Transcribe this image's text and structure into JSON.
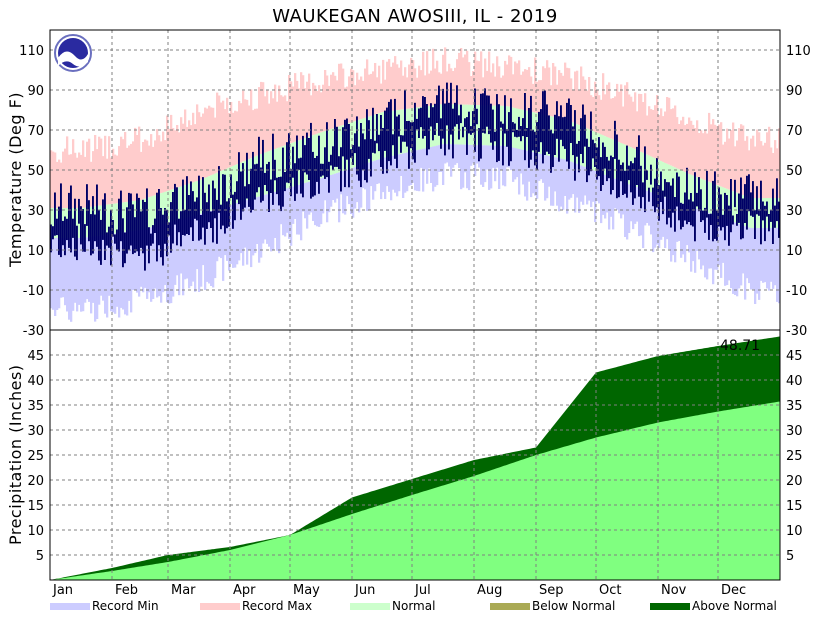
{
  "colors": {
    "record_min": "#ccccff",
    "record_max": "#ffcccc",
    "normal": "#ccffcc",
    "observed": "#000066",
    "below_normal": "#aaaa55",
    "above_normal": "#006600",
    "normal_precip": "#80ff80",
    "grid": "#808080"
  },
  "chart_data": {
    "type": "area",
    "title": "WAUKEGAN  AWOSIII, IL - 2019",
    "x_ticks": [
      "Jan",
      "Feb",
      "Mar",
      "Apr",
      "May",
      "Jun",
      "Jul",
      "Aug",
      "Sep",
      "Oct",
      "Nov",
      "Dec"
    ],
    "grid": true,
    "temperature": {
      "ylabel": "Temperature (Deg F)",
      "ylim": [
        -30,
        120
      ],
      "y_ticks": [
        110,
        90,
        70,
        50,
        30,
        10,
        -10,
        -30
      ],
      "monthly_normal_high": [
        31,
        35,
        45,
        58,
        69,
        79,
        83,
        82,
        75,
        62,
        48,
        36
      ],
      "monthly_normal_low": [
        16,
        20,
        28,
        37,
        46,
        56,
        63,
        62,
        55,
        43,
        32,
        21
      ],
      "monthly_record_max": [
        60,
        65,
        80,
        88,
        95,
        100,
        105,
        102,
        97,
        88,
        75,
        65
      ],
      "monthly_record_min": [
        -20,
        -15,
        -5,
        10,
        28,
        38,
        48,
        45,
        35,
        22,
        5,
        -10
      ],
      "monthly_observed_high": [
        32,
        28,
        38,
        56,
        63,
        76,
        85,
        80,
        77,
        60,
        40,
        38
      ],
      "monthly_observed_low": [
        14,
        8,
        18,
        36,
        45,
        55,
        66,
        62,
        56,
        43,
        22,
        22
      ]
    },
    "precipitation": {
      "ylabel": "Precipitation (Inches)",
      "ylim": [
        0,
        50
      ],
      "y_ticks": [
        45,
        40,
        35,
        30,
        25,
        20,
        15,
        10,
        5
      ],
      "annual_total_label": "48.71",
      "normal_cumulative_monthly": [
        0,
        1.8,
        3.6,
        6.0,
        9.0,
        13.2,
        17.0,
        20.8,
        25.0,
        28.5,
        31.5,
        33.7,
        35.7
      ],
      "observed_cumulative_monthly": [
        0,
        2.4,
        5.0,
        6.6,
        9.0,
        16.5,
        20.2,
        24.0,
        26.5,
        41.5,
        44.8,
        46.8,
        48.71
      ]
    }
  },
  "legend": [
    {
      "label": "Record Min",
      "color": "#ccccff"
    },
    {
      "label": "Record Max",
      "color": "#ffcccc"
    },
    {
      "label": "Normal",
      "color": "#ccffcc"
    },
    {
      "label": "Below Normal",
      "color": "#aaaa55"
    },
    {
      "label": "Above Normal",
      "color": "#006600"
    }
  ]
}
